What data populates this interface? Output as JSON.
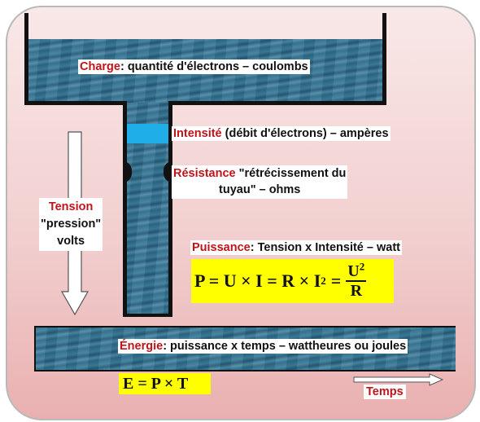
{
  "labels": {
    "charge": {
      "key": "Charge",
      "rest": ": quantité d'électrons – coulombs"
    },
    "intensite": {
      "key": "Intensité",
      "rest": " (débit d'électrons) – ampères"
    },
    "resistance": {
      "key": "Résistance",
      "rest": " \"rétrécissement du",
      "line2": "tuyau\" – ohms"
    },
    "tension": {
      "key": "Tension",
      "line2": "\"pression\"",
      "line3": "volts"
    },
    "puissance": {
      "key": "Puissance",
      "rest": ": Tension x Intensité – watt"
    },
    "energie": {
      "key": "Énergie",
      "rest": ": puissance x temps – wattheures ou joules"
    },
    "temps": {
      "key": "Temps"
    }
  },
  "formulas": {
    "power": {
      "main": "P = U × I = R × I",
      "exp": "2",
      "eq": "=",
      "num": "U",
      "num_exp": "2",
      "den": "R"
    },
    "energy": {
      "text": "E = P × T"
    }
  },
  "colors": {
    "key_text": "#c0141a",
    "formula_bg": "#ffff00",
    "flow_band": "#1faee8",
    "water": "#2f6b8a"
  }
}
